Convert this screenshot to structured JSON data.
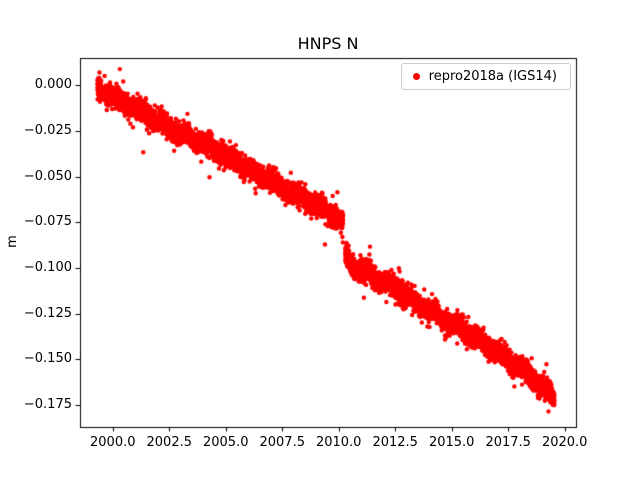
{
  "figure": {
    "title": "HNPS N",
    "ylabel": "m",
    "background": "#ffffff"
  },
  "chart_data": {
    "type": "scatter",
    "title": "HNPS N",
    "xlabel": "",
    "ylabel": "m",
    "grid": false,
    "xlim": [
      1998.55,
      2020.5
    ],
    "ylim": [
      -0.187,
      0.015
    ],
    "xticks": [
      2000.0,
      2002.5,
      2005.0,
      2007.5,
      2010.0,
      2012.5,
      2015.0,
      2017.5,
      2020.0
    ],
    "xtick_labels": [
      "2000.0",
      "2002.5",
      "2005.0",
      "2007.5",
      "2010.0",
      "2012.5",
      "2015.0",
      "2017.5",
      "2020.0"
    ],
    "yticks": [
      0.0,
      -0.025,
      -0.05,
      -0.075,
      -0.1,
      -0.125,
      -0.15,
      -0.175
    ],
    "ytick_labels": [
      "0.000",
      "−0.025",
      "−0.050",
      "−0.075",
      "−0.100",
      "−0.125",
      "−0.150",
      "−0.175"
    ],
    "legend": {
      "position": "upper right",
      "entries": [
        {
          "label": "repro2018a (IGS14)",
          "color": "#ff0000",
          "marker": "dot"
        }
      ]
    },
    "series": [
      {
        "name": "repro2018a (IGS14)",
        "color": "#ff0000",
        "marker": "circle",
        "marker_radius": 2.2,
        "x_start": 1999.32,
        "x_end": 2019.55,
        "points_per_year": 330,
        "seed": 42,
        "noise_std": 0.0028,
        "seasonal_amp": 0.0013,
        "outlier_rate": 0.02,
        "gaps": [
          [
            1999.5,
            1999.6
          ],
          [
            2010.195,
            2010.285
          ]
        ],
        "trend_anchors": [
          [
            1999.32,
            -0.0015
          ],
          [
            1999.6,
            -0.0035
          ],
          [
            2000.0,
            -0.006
          ],
          [
            2000.5,
            -0.0095
          ],
          [
            2001.0,
            -0.0125
          ],
          [
            2001.5,
            -0.016
          ],
          [
            2002.0,
            -0.0195
          ],
          [
            2002.5,
            -0.023
          ],
          [
            2003.0,
            -0.026
          ],
          [
            2003.5,
            -0.029
          ],
          [
            2004.0,
            -0.032
          ],
          [
            2004.5,
            -0.035
          ],
          [
            2005.0,
            -0.0385
          ],
          [
            2005.5,
            -0.042
          ],
          [
            2006.0,
            -0.0455
          ],
          [
            2006.5,
            -0.049
          ],
          [
            2007.0,
            -0.052
          ],
          [
            2007.5,
            -0.0565
          ],
          [
            2008.0,
            -0.0595
          ],
          [
            2008.5,
            -0.0625
          ],
          [
            2009.0,
            -0.0655
          ],
          [
            2009.5,
            -0.069
          ],
          [
            2010.0,
            -0.073
          ],
          [
            2010.2,
            -0.0765
          ],
          [
            2010.28,
            -0.093
          ],
          [
            2010.6,
            -0.0985
          ],
          [
            2011.0,
            -0.101
          ],
          [
            2011.5,
            -0.1045
          ],
          [
            2012.0,
            -0.1075
          ],
          [
            2012.5,
            -0.111
          ],
          [
            2013.0,
            -0.115
          ],
          [
            2013.5,
            -0.119
          ],
          [
            2014.0,
            -0.123
          ],
          [
            2014.5,
            -0.1268
          ],
          [
            2015.0,
            -0.13
          ],
          [
            2015.5,
            -0.134
          ],
          [
            2016.0,
            -0.138
          ],
          [
            2016.5,
            -0.142
          ],
          [
            2017.0,
            -0.146
          ],
          [
            2017.5,
            -0.15
          ],
          [
            2018.0,
            -0.1548
          ],
          [
            2018.5,
            -0.1595
          ],
          [
            2019.0,
            -0.165
          ],
          [
            2019.55,
            -0.1712
          ]
        ]
      }
    ]
  }
}
